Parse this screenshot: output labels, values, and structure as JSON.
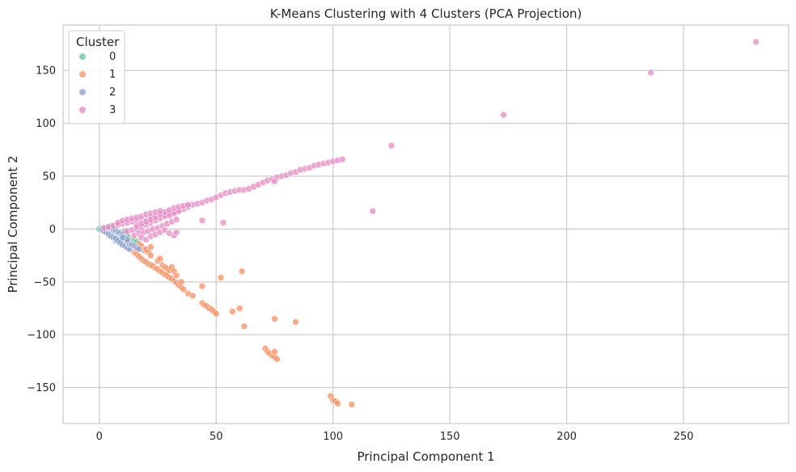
{
  "chart_data": {
    "type": "scatter",
    "title": "K-Means Clustering with 4 Clusters (PCA Projection)",
    "xlabel": "Principal Component 1",
    "ylabel": "Principal Component 2",
    "xlim": [
      -15.5,
      295
    ],
    "ylim": [
      -184,
      193
    ],
    "xticks": [
      0,
      50,
      100,
      150,
      200,
      250
    ],
    "yticks": [
      -150,
      -100,
      -50,
      0,
      50,
      100,
      150
    ],
    "grid": true,
    "legend": {
      "title": "Cluster",
      "position": "top-left"
    },
    "series": [
      {
        "name": "0",
        "color": "#66c2a5",
        "points": [
          [
            0,
            0
          ],
          [
            1,
            0.5
          ],
          [
            2,
            -1
          ],
          [
            3,
            -2
          ],
          [
            4,
            -3
          ],
          [
            5,
            -4
          ],
          [
            6,
            -6
          ],
          [
            7,
            -7
          ],
          [
            8,
            -9
          ],
          [
            9,
            -10
          ],
          [
            10,
            -12
          ],
          [
            11,
            -11
          ],
          [
            12,
            -13
          ],
          [
            13,
            -9
          ],
          [
            14,
            -12
          ],
          [
            10,
            -8
          ],
          [
            8,
            -5
          ],
          [
            6,
            -2
          ],
          [
            7,
            -11
          ],
          [
            9,
            -14
          ],
          [
            11,
            -8
          ],
          [
            12,
            -6
          ],
          [
            15,
            -10
          ],
          [
            16,
            -12
          ]
        ]
      },
      {
        "name": "1",
        "color": "#fc8d62",
        "points": [
          [
            15,
            -22
          ],
          [
            16,
            -24
          ],
          [
            17,
            -26
          ],
          [
            18,
            -28
          ],
          [
            19,
            -30
          ],
          [
            20,
            -31
          ],
          [
            21,
            -33
          ],
          [
            22,
            -34
          ],
          [
            23,
            -35
          ],
          [
            24,
            -37
          ],
          [
            25,
            -38
          ],
          [
            26,
            -40
          ],
          [
            27,
            -41
          ],
          [
            28,
            -43
          ],
          [
            29,
            -44
          ],
          [
            30,
            -46
          ],
          [
            31,
            -47
          ],
          [
            32,
            -49
          ],
          [
            33,
            -51
          ],
          [
            34,
            -53
          ],
          [
            35,
            -55
          ],
          [
            36,
            -57
          ],
          [
            38,
            -61
          ],
          [
            40,
            -63
          ],
          [
            44,
            -70
          ],
          [
            45,
            -72
          ],
          [
            46,
            -73
          ],
          [
            47,
            -75
          ],
          [
            48,
            -76
          ],
          [
            49,
            -78
          ],
          [
            50,
            -80
          ],
          [
            17,
            -14
          ],
          [
            18,
            -16
          ],
          [
            19,
            -20
          ],
          [
            20,
            -19
          ],
          [
            21,
            -22
          ],
          [
            22,
            -17
          ],
          [
            22,
            -25
          ],
          [
            25,
            -30
          ],
          [
            26,
            -28
          ],
          [
            27,
            -34
          ],
          [
            28,
            -36
          ],
          [
            29,
            -37
          ],
          [
            30,
            -39
          ],
          [
            31,
            -36
          ],
          [
            32,
            -40
          ],
          [
            33,
            -44
          ],
          [
            35,
            -50
          ],
          [
            44,
            -54
          ],
          [
            52,
            -46
          ],
          [
            57,
            -78
          ],
          [
            60,
            -75
          ],
          [
            61,
            -40
          ],
          [
            62,
            -92
          ],
          [
            71,
            -113
          ],
          [
            72,
            -116
          ],
          [
            73,
            -118
          ],
          [
            74,
            -120
          ],
          [
            75,
            -121
          ],
          [
            76,
            -123
          ],
          [
            75,
            -116
          ],
          [
            75,
            -85
          ],
          [
            84,
            -88
          ],
          [
            99,
            -158
          ],
          [
            100,
            -162
          ],
          [
            101,
            -163
          ],
          [
            102,
            -165
          ],
          [
            108,
            -166
          ]
        ]
      },
      {
        "name": "2",
        "color": "#8da0cb",
        "points": [
          [
            1,
            -1
          ],
          [
            2,
            -2
          ],
          [
            3,
            -3
          ],
          [
            4,
            -5
          ],
          [
            5,
            -7
          ],
          [
            6,
            -8
          ],
          [
            7,
            -9
          ],
          [
            8,
            -11
          ],
          [
            9,
            -13
          ],
          [
            10,
            -15
          ],
          [
            11,
            -16
          ],
          [
            12,
            -18
          ],
          [
            13,
            -19
          ],
          [
            3,
            1
          ],
          [
            4,
            2
          ],
          [
            5,
            3
          ],
          [
            6,
            0
          ],
          [
            7,
            -1
          ],
          [
            8,
            -3
          ],
          [
            9,
            -4
          ],
          [
            10,
            -5
          ],
          [
            11,
            -2
          ],
          [
            12,
            -12
          ],
          [
            13,
            -14
          ],
          [
            14,
            -15
          ],
          [
            15,
            -16
          ],
          [
            16,
            -18
          ],
          [
            17,
            -19
          ],
          [
            12,
            -10
          ],
          [
            10,
            -8
          ]
        ]
      },
      {
        "name": "3",
        "color": "#e78ac3",
        "points": [
          [
            2,
            1
          ],
          [
            4,
            2
          ],
          [
            6,
            3
          ],
          [
            8,
            4
          ],
          [
            10,
            5
          ],
          [
            12,
            6
          ],
          [
            14,
            7
          ],
          [
            16,
            8
          ],
          [
            18,
            9
          ],
          [
            20,
            10
          ],
          [
            22,
            11
          ],
          [
            24,
            12
          ],
          [
            26,
            13
          ],
          [
            28,
            14
          ],
          [
            30,
            15
          ],
          [
            32,
            16
          ],
          [
            34,
            18
          ],
          [
            36,
            19
          ],
          [
            38,
            21
          ],
          [
            40,
            23
          ],
          [
            42,
            24
          ],
          [
            44,
            25
          ],
          [
            46,
            27
          ],
          [
            48,
            28
          ],
          [
            50,
            30
          ],
          [
            52,
            32
          ],
          [
            54,
            34
          ],
          [
            56,
            35
          ],
          [
            58,
            36
          ],
          [
            60,
            37
          ],
          [
            62,
            37
          ],
          [
            64,
            38
          ],
          [
            66,
            40
          ],
          [
            68,
            42
          ],
          [
            70,
            44
          ],
          [
            72,
            46
          ],
          [
            74,
            47
          ],
          [
            76,
            49
          ],
          [
            78,
            50
          ],
          [
            80,
            51
          ],
          [
            82,
            53
          ],
          [
            84,
            54
          ],
          [
            86,
            56
          ],
          [
            88,
            57
          ],
          [
            90,
            58
          ],
          [
            92,
            60
          ],
          [
            94,
            61
          ],
          [
            96,
            62
          ],
          [
            98,
            63
          ],
          [
            100,
            64
          ],
          [
            102,
            65
          ],
          [
            104,
            66
          ],
          [
            12,
            -2
          ],
          [
            14,
            -1
          ],
          [
            16,
            0
          ],
          [
            18,
            2
          ],
          [
            20,
            4
          ],
          [
            22,
            6
          ],
          [
            24,
            8
          ],
          [
            26,
            10
          ],
          [
            28,
            12
          ],
          [
            30,
            13
          ],
          [
            32,
            15
          ],
          [
            34,
            17
          ],
          [
            15,
            -6
          ],
          [
            17,
            -4
          ],
          [
            19,
            -3
          ],
          [
            21,
            -2
          ],
          [
            23,
            0
          ],
          [
            25,
            1
          ],
          [
            27,
            3
          ],
          [
            29,
            5
          ],
          [
            31,
            7
          ],
          [
            33,
            9
          ],
          [
            18,
            -8
          ],
          [
            20,
            -10
          ],
          [
            22,
            -7
          ],
          [
            24,
            -5
          ],
          [
            26,
            -3
          ],
          [
            28,
            -1
          ],
          [
            30,
            -4
          ],
          [
            32,
            -6
          ],
          [
            33,
            -3
          ],
          [
            16,
            3
          ],
          [
            18,
            5
          ],
          [
            20,
            7
          ],
          [
            22,
            9
          ],
          [
            24,
            11
          ],
          [
            26,
            14
          ],
          [
            28,
            16
          ],
          [
            30,
            18
          ],
          [
            32,
            20
          ],
          [
            34,
            21
          ],
          [
            36,
            22
          ],
          [
            38,
            23
          ],
          [
            8,
            6
          ],
          [
            10,
            8
          ],
          [
            12,
            9
          ],
          [
            14,
            10
          ],
          [
            16,
            11
          ],
          [
            18,
            12
          ],
          [
            20,
            14
          ],
          [
            22,
            15
          ],
          [
            24,
            16
          ],
          [
            26,
            17
          ],
          [
            44,
            8
          ],
          [
            53,
            6
          ],
          [
            75,
            45
          ],
          [
            117,
            17
          ],
          [
            125,
            79
          ],
          [
            173,
            108
          ],
          [
            236,
            148
          ],
          [
            281,
            177
          ]
        ]
      }
    ]
  }
}
